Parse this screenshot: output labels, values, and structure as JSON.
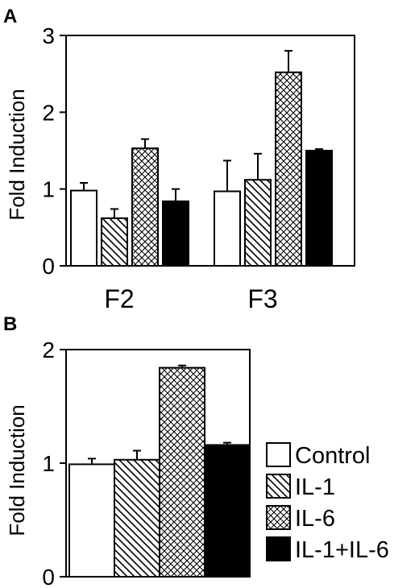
{
  "panels": [
    {
      "letter": "A"
    },
    {
      "letter": "B"
    }
  ],
  "legend": {
    "items": [
      {
        "label": "Control",
        "pattern": "white"
      },
      {
        "label": "IL-1",
        "pattern": "diagonal"
      },
      {
        "label": "IL-6",
        "pattern": "crosshatch"
      },
      {
        "label": "IL-1+IL-6",
        "pattern": "black"
      }
    ]
  },
  "chart_data": [
    {
      "type": "bar",
      "panel": "A",
      "ylabel": "Fold Induction",
      "xlabel": "",
      "ylim": [
        0,
        3
      ],
      "yticks": [
        "0",
        "1",
        "2",
        "3"
      ],
      "categories": [
        "F2",
        "F3"
      ],
      "series": [
        {
          "name": "Control",
          "values": [
            0.98,
            0.97
          ],
          "errors": [
            0.1,
            0.4
          ]
        },
        {
          "name": "IL-1",
          "values": [
            0.62,
            1.12
          ],
          "errors": [
            0.12,
            0.34
          ]
        },
        {
          "name": "IL-6",
          "values": [
            1.53,
            2.52
          ],
          "errors": [
            0.12,
            0.28
          ]
        },
        {
          "name": "IL-1+IL-6",
          "values": [
            0.84,
            1.5
          ],
          "errors": [
            0.16,
            0.02
          ]
        }
      ],
      "grid": false
    },
    {
      "type": "bar",
      "panel": "B",
      "ylabel": "Fold Induction",
      "xlabel": "",
      "ylim": [
        0,
        2
      ],
      "yticks": [
        "0",
        "1",
        "2"
      ],
      "categories": [
        ""
      ],
      "series": [
        {
          "name": "Control",
          "values": [
            0.99
          ],
          "errors": [
            0.05
          ]
        },
        {
          "name": "IL-1",
          "values": [
            1.03
          ],
          "errors": [
            0.08
          ]
        },
        {
          "name": "IL-6",
          "values": [
            1.84
          ],
          "errors": [
            0.02
          ]
        },
        {
          "name": "IL-1+IL-6",
          "values": [
            1.16
          ],
          "errors": [
            0.02
          ]
        }
      ],
      "legend_position": "bottom-right",
      "grid": false
    }
  ]
}
